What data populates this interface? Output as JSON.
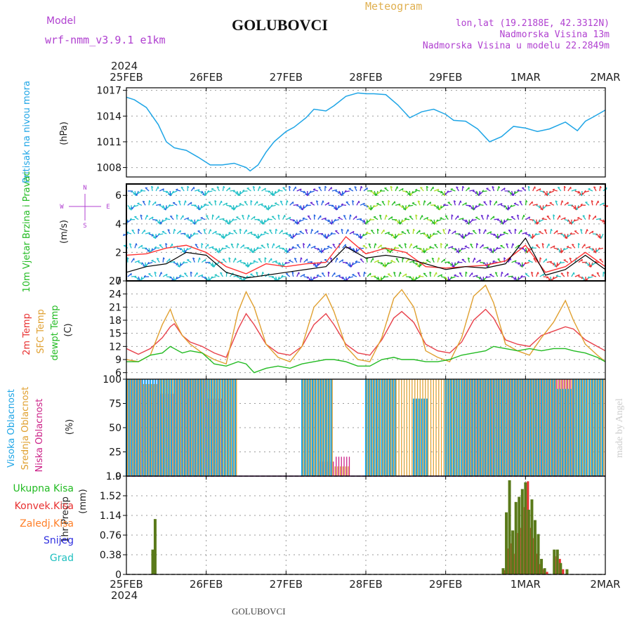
{
  "header": {
    "model_label": "Model",
    "model_name": "wrf-nmm_v3.9.1 e1km",
    "station": "GOLUBOVCI",
    "meteogram_label": "Meteogram",
    "lonlat": "lon,lat (19.2188E, 42.3312N)",
    "elevation": "Nadmorska Visina 13m",
    "model_elevation": "Nadmorska Visina u modelu 22.2849m",
    "year": "2024",
    "footer_station": "GOLUBOVCI",
    "credit": "made by Angel"
  },
  "time_axis": {
    "labels": [
      "25FEB",
      "26FEB",
      "27FEB",
      "28FEB",
      "29FEB",
      "1MAR",
      "2MAR"
    ],
    "bottom_year": "2024"
  },
  "compass": {
    "n": "N",
    "s": "S",
    "e": "E",
    "w": "W"
  },
  "colors": {
    "pressure": "#1ea5e6",
    "wind_speed": "#000000",
    "wind_gust": "#ff3333",
    "temp2m": "#e8404a",
    "sfc_temp": "#e0a030",
    "dewpoint": "#22bb22",
    "high_cloud": "#1ea5e6",
    "mid_cloud": "#e0a030",
    "low_cloud": "#cc2288",
    "total_precip": "#5a7a1a",
    "conv_precip": "#e83030",
    "grid": "#999999",
    "label_purple": "#b040d0",
    "label_gold": "#e0b050",
    "label_cyan": "#1ea5e6",
    "label_green": "#22bb22",
    "label_red": "#e83030",
    "label_orange": "#ff7f27",
    "label_blue": "#3030e0",
    "label_teal": "#20c0c0",
    "label_magenta": "#dd1177"
  },
  "chart_data": [
    {
      "type": "line",
      "ylabel": "Pritisak na nivou mora",
      "unit": "(hPa)",
      "yticks": [
        "1008",
        "1011",
        "1014",
        "1017"
      ],
      "ylim": [
        1006.9,
        1017.3
      ],
      "x_days": [
        0,
        0.1,
        0.25,
        0.4,
        0.5,
        0.6,
        0.75,
        0.9,
        1.05,
        1.2,
        1.35,
        1.5,
        1.55,
        1.65,
        1.75,
        1.85,
        2.0,
        2.1,
        2.25,
        2.35,
        2.5,
        2.6,
        2.75,
        2.9,
        3.0,
        3.1,
        3.25,
        3.4,
        3.55,
        3.7,
        3.85,
        4.0,
        4.1,
        4.25,
        4.4,
        4.55,
        4.7,
        4.85,
        5.0,
        5.15,
        5.3,
        5.5,
        5.65,
        5.75,
        5.85,
        6.0
      ],
      "series": [
        {
          "name": "",
          "values": [
            1016.2,
            1015.9,
            1015.0,
            1013.0,
            1011.0,
            1010.3,
            1010.0,
            1009.2,
            1008.3,
            1008.3,
            1008.5,
            1008.0,
            1007.6,
            1008.3,
            1009.8,
            1011.0,
            1012.2,
            1012.7,
            1013.8,
            1014.8,
            1014.6,
            1015.2,
            1016.3,
            1016.7,
            1016.6,
            1016.6,
            1016.5,
            1015.3,
            1013.8,
            1014.5,
            1014.8,
            1014.2,
            1013.5,
            1013.4,
            1012.5,
            1011.0,
            1011.6,
            1012.8,
            1012.6,
            1012.2,
            1012.5,
            1013.3,
            1012.3,
            1013.4,
            1013.9,
            1014.7
          ]
        }
      ]
    },
    {
      "type": "line",
      "ylabel": "10m Vjetar Brzina i Pravac",
      "unit": "(m/s)",
      "yticks": [
        "0",
        "2",
        "4",
        "6"
      ],
      "ylim": [
        0,
        6.8
      ],
      "x_days": [
        0,
        0.25,
        0.5,
        0.75,
        1.0,
        1.25,
        1.5,
        1.75,
        2.0,
        2.25,
        2.5,
        2.75,
        3.0,
        3.25,
        3.5,
        3.75,
        4.0,
        4.25,
        4.5,
        4.75,
        5.0,
        5.25,
        5.5,
        5.75,
        6.0
      ],
      "series": [
        {
          "name": "",
          "values": [
            1.8,
            1.9,
            2.3,
            2.5,
            2.0,
            1.0,
            0.5,
            1.2,
            1.0,
            1.2,
            1.3,
            3.1,
            1.9,
            2.3,
            2.0,
            1.0,
            0.9,
            1.0,
            1.1,
            1.4,
            2.5,
            0.6,
            1.0,
            2.0,
            1.0
          ]
        },
        {
          "name": "",
          "values": [
            0.6,
            1.0,
            1.2,
            2.0,
            1.8,
            0.6,
            0.2,
            0.4,
            0.6,
            0.8,
            1.0,
            2.4,
            1.6,
            1.8,
            1.6,
            1.2,
            0.8,
            1.0,
            0.9,
            1.2,
            3.0,
            0.4,
            0.8,
            1.8,
            0.8
          ]
        }
      ]
    },
    {
      "type": "line",
      "ylabel": "2m Temp / SFC Temp / dewpt Temp",
      "unit": "(C)",
      "yticks": [
        "6",
        "9",
        "12",
        "15",
        "18",
        "21",
        "24",
        "27"
      ],
      "ylim": [
        4.5,
        27
      ],
      "x_days": [
        0,
        0.15,
        0.3,
        0.45,
        0.55,
        0.6,
        0.7,
        0.8,
        0.95,
        1.1,
        1.25,
        1.4,
        1.5,
        1.6,
        1.75,
        1.9,
        2.05,
        2.2,
        2.35,
        2.5,
        2.6,
        2.75,
        2.9,
        3.05,
        3.2,
        3.35,
        3.45,
        3.6,
        3.75,
        3.9,
        4.05,
        4.2,
        4.35,
        4.5,
        4.6,
        4.75,
        4.9,
        5.05,
        5.2,
        5.35,
        5.5,
        5.6,
        5.75,
        5.9,
        6.0
      ],
      "series": [
        {
          "name": "2m Temp",
          "values": [
            11.5,
            10.2,
            11.5,
            14.0,
            16.5,
            17.2,
            14.5,
            13.0,
            12.0,
            10.5,
            9.5,
            16.0,
            19.5,
            17.0,
            12.5,
            10.5,
            10.0,
            12.0,
            17.0,
            19.5,
            17.0,
            12.5,
            10.5,
            10.0,
            13.5,
            18.5,
            20.0,
            17.5,
            12.5,
            11.0,
            10.5,
            13.0,
            18.0,
            20.5,
            18.5,
            13.5,
            12.5,
            12.0,
            14.5,
            15.5,
            16.5,
            16.0,
            13.5,
            12.0,
            11.0
          ]
        },
        {
          "name": "SFC Temp",
          "values": [
            9.0,
            8.5,
            10.0,
            17.0,
            20.5,
            18.0,
            14.5,
            12.5,
            10.5,
            9.0,
            8.0,
            20.0,
            24.5,
            21.0,
            12.5,
            9.5,
            8.5,
            12.0,
            21.0,
            24.0,
            20.0,
            12.0,
            9.0,
            8.5,
            14.0,
            23.0,
            25.0,
            21.0,
            11.0,
            9.5,
            8.5,
            14.0,
            23.5,
            26.0,
            22.0,
            12.5,
            11.0,
            10.0,
            14.0,
            17.5,
            22.5,
            18.0,
            12.5,
            10.0,
            8.5
          ]
        },
        {
          "name": "dewpt Temp",
          "values": [
            8.5,
            8.5,
            10.0,
            10.5,
            12.0,
            11.5,
            10.5,
            11.0,
            10.5,
            8.0,
            7.5,
            8.5,
            8.0,
            6.0,
            7.0,
            7.5,
            7.0,
            8.0,
            8.5,
            9.0,
            9.0,
            8.5,
            7.5,
            7.5,
            9.0,
            9.5,
            9.0,
            9.0,
            8.5,
            8.5,
            9.0,
            10.0,
            10.5,
            11.0,
            12.0,
            11.5,
            11.0,
            11.5,
            11.0,
            11.5,
            11.5,
            11.0,
            10.5,
            9.5,
            8.5
          ]
        }
      ]
    },
    {
      "type": "bar",
      "ylabel": "Visoka Oblacnost / Srednja Oblacnost / Niska Oblacnost",
      "unit": "(%)",
      "yticks": [
        "0",
        "25",
        "50",
        "75",
        "100"
      ],
      "ylim": [
        0,
        100
      ],
      "x_days": [
        0.0,
        0.2,
        0.4,
        0.6,
        0.8,
        1.0,
        1.2,
        1.4,
        1.6,
        1.8,
        2.0,
        2.2,
        2.4,
        2.6,
        2.8,
        3.0,
        3.2,
        3.4,
        3.6,
        3.8,
        4.0,
        4.2,
        4.4,
        4.6,
        4.8,
        5.0,
        5.2,
        5.4,
        5.6,
        5.8
      ],
      "series": [
        {
          "name": "Visoka Oblacnost",
          "values": [
            100,
            100,
            100,
            100,
            100,
            100,
            100,
            0,
            0,
            0,
            0,
            100,
            100,
            0,
            0,
            100,
            100,
            0,
            80,
            0,
            100,
            100,
            100,
            100,
            100,
            100,
            100,
            90,
            100,
            100
          ]
        },
        {
          "name": "Srednja Oblacnost",
          "values": [
            100,
            95,
            100,
            100,
            100,
            100,
            100,
            0,
            0,
            0,
            0,
            100,
            100,
            10,
            0,
            100,
            100,
            100,
            100,
            100,
            100,
            100,
            100,
            100,
            100,
            100,
            100,
            100,
            100,
            100
          ]
        },
        {
          "name": "Niska Oblacnost",
          "values": [
            100,
            100,
            85,
            100,
            100,
            80,
            0,
            0,
            0,
            0,
            0,
            0,
            15,
            20,
            0,
            0,
            0,
            0,
            0,
            0,
            0,
            100,
            100,
            100,
            100,
            100,
            100,
            100,
            0,
            0
          ]
        }
      ]
    },
    {
      "type": "bar",
      "ylabel": "1hr Precip",
      "unit": "(mm)",
      "yticks": [
        "0",
        "0.38",
        "0.76",
        "1.14",
        "1.52",
        "1.9"
      ],
      "ylim": [
        0,
        1.9
      ],
      "x_days": [
        0.33,
        0.36,
        4.72,
        4.76,
        4.8,
        4.84,
        4.88,
        4.92,
        4.96,
        5.0,
        5.04,
        5.08,
        5.12,
        5.16,
        5.2,
        5.24,
        5.36,
        5.4,
        5.44,
        5.52
      ],
      "series": [
        {
          "name": "Ukupna Kisa",
          "values": [
            0.48,
            1.07,
            0.12,
            1.2,
            1.82,
            0.85,
            1.4,
            1.5,
            1.65,
            1.78,
            1.25,
            1.45,
            1.05,
            0.78,
            0.3,
            0.12,
            0.48,
            0.48,
            0.22,
            0.1
          ]
        },
        {
          "name": "Konvek.Kisa",
          "values": [
            0.0,
            0.0,
            0.08,
            0.5,
            0.6,
            0.4,
            0.8,
            0.9,
            1.3,
            1.8,
            0.9,
            0.7,
            0.4,
            0.2,
            0.1,
            0.05,
            0.35,
            0.3,
            0.1,
            0.0
          ]
        }
      ],
      "legend": [
        "Ukupna Kisa",
        "Konvek.Kisa",
        "Zaledj.Kisa",
        "Snijeg",
        "Grad"
      ]
    }
  ]
}
